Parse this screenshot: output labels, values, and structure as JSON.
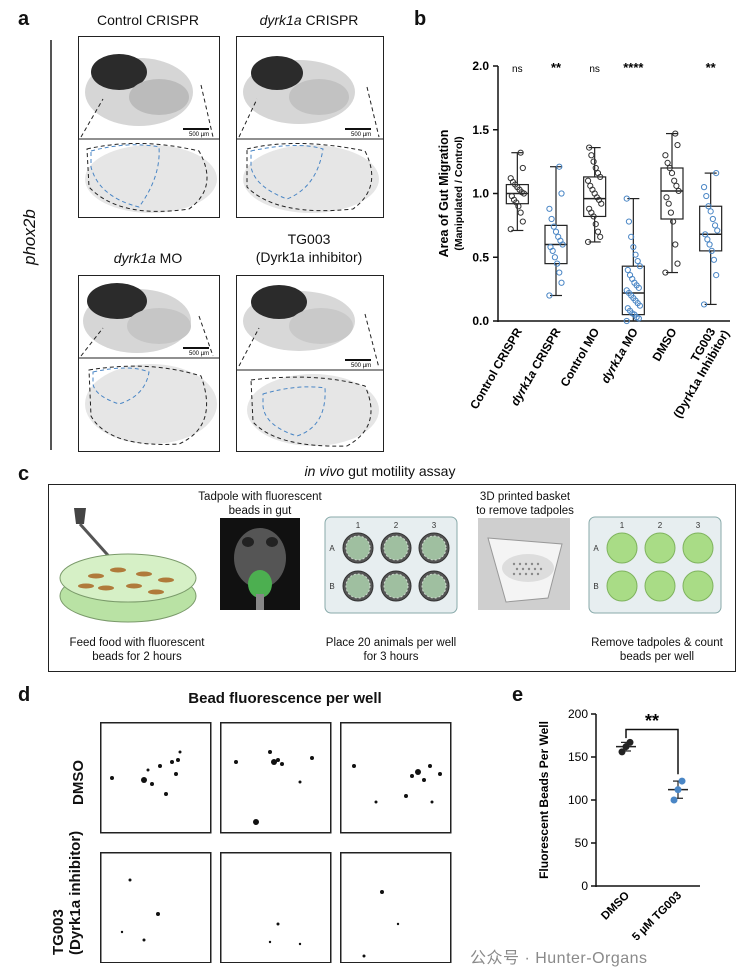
{
  "panel_a": {
    "letter": "a",
    "side_label": "phox2b",
    "titles": {
      "control": "Control CRISPR",
      "dyrk_crispr_gene": "dyrk1a",
      "dyrk_crispr_rest": " CRISPR",
      "mo_gene": "dyrk1a",
      "mo_rest": " MO",
      "tg_line1": "TG003",
      "tg_line2": "(Dyrk1a inhibitor)"
    },
    "scale_bar": "500 µm"
  },
  "panel_b": {
    "letter": "b",
    "significance": [
      "ns",
      "**",
      "ns",
      "****",
      "",
      "**"
    ]
  },
  "panel_c": {
    "letter": "c",
    "title_italic": "in vivo",
    "title_rest": " gut motility assay",
    "tadpole_caption_1": "Tadpole with fluorescent",
    "tadpole_caption_2": "beads in gut",
    "basket_caption_1": "3D printed basket",
    "basket_caption_2": "to remove tadpoles",
    "step1_1": "Feed food with fluorescent",
    "step1_2": "beads for 2 hours",
    "step2_1": "Place 20 animals per well",
    "step2_2": "for 3 hours",
    "step3_1": "Remove tadpoles & count",
    "step3_2": "beads per well",
    "plate_cols": [
      "1",
      "2",
      "3"
    ],
    "plate_rows": [
      "A",
      "B"
    ]
  },
  "panel_d": {
    "letter": "d",
    "title": "Bead fluorescence per well",
    "row1": "DMSO",
    "row2_line1": "TG003",
    "row2_line2": "(Dyrk1a inhibitor)"
  },
  "panel_e": {
    "letter": "e",
    "significance": "**"
  },
  "watermark": "公众号 · Hunter-Organs",
  "chart_data": [
    {
      "type": "box",
      "panel": "b",
      "ylabel": "Area of Gut Migration",
      "ylabel2": "(Manipulated / Control)",
      "ylim": [
        0,
        2.0
      ],
      "yticks": [
        "0.0",
        "0.5",
        "1.0",
        "1.5",
        "2.0"
      ],
      "categories": [
        "Control CRISPR",
        "dyrk1a CRISPR",
        "Control MO",
        "dyrk1a MO",
        "DMSO",
        "TG003 (Dyrk1a Inhibitor)"
      ],
      "cat_label_parts": [
        [
          "",
          "Control CRISPR",
          ""
        ],
        [
          "dyrk1a",
          " CRISPR",
          ""
        ],
        [
          "",
          "Control MO",
          ""
        ],
        [
          "dyrk1a",
          " MO",
          ""
        ],
        [
          "",
          "DMSO",
          ""
        ],
        [
          "",
          "TG003",
          "(Dyrk1a Inhibitor)"
        ]
      ],
      "colors": [
        "#333333",
        "#4a86c5",
        "#333333",
        "#4a86c5",
        "#333333",
        "#4a86c5"
      ],
      "boxes": [
        {
          "min": 0.71,
          "q1": 0.92,
          "median": 1.0,
          "q3": 1.07,
          "max": 1.32
        },
        {
          "min": 0.2,
          "q1": 0.45,
          "median": 0.6,
          "q3": 0.75,
          "max": 1.21
        },
        {
          "min": 0.62,
          "q1": 0.82,
          "median": 0.96,
          "q3": 1.13,
          "max": 1.36
        },
        {
          "min": 0.0,
          "q1": 0.05,
          "median": 0.22,
          "q3": 0.43,
          "max": 0.96
        },
        {
          "min": 0.38,
          "q1": 0.8,
          "median": 1.02,
          "q3": 1.2,
          "max": 1.47
        },
        {
          "min": 0.13,
          "q1": 0.55,
          "median": 0.68,
          "q3": 0.9,
          "max": 1.16
        }
      ],
      "points": [
        [
          0.72,
          0.78,
          0.85,
          0.9,
          0.93,
          0.95,
          0.98,
          1.0,
          1.01,
          1.03,
          1.05,
          1.07,
          1.09,
          1.12,
          1.2,
          1.32
        ],
        [
          0.2,
          0.3,
          0.38,
          0.45,
          0.5,
          0.55,
          0.58,
          0.6,
          0.63,
          0.66,
          0.7,
          0.74,
          0.8,
          0.88,
          1.0,
          1.21
        ],
        [
          0.62,
          0.66,
          0.7,
          0.76,
          0.82,
          0.85,
          0.88,
          0.92,
          0.95,
          0.97,
          1.0,
          1.03,
          1.06,
          1.1,
          1.13,
          1.16,
          1.2,
          1.25,
          1.3,
          1.36
        ],
        [
          0.0,
          0.02,
          0.03,
          0.05,
          0.06,
          0.08,
          0.1,
          0.12,
          0.14,
          0.16,
          0.18,
          0.2,
          0.22,
          0.24,
          0.26,
          0.28,
          0.3,
          0.33,
          0.36,
          0.4,
          0.43,
          0.47,
          0.52,
          0.58,
          0.66,
          0.78,
          0.96
        ],
        [
          0.38,
          0.45,
          0.6,
          0.78,
          0.85,
          0.92,
          0.97,
          1.02,
          1.06,
          1.1,
          1.16,
          1.2,
          1.24,
          1.3,
          1.38,
          1.47
        ],
        [
          0.13,
          0.36,
          0.48,
          0.55,
          0.6,
          0.64,
          0.68,
          0.71,
          0.75,
          0.8,
          0.86,
          0.9,
          0.98,
          1.05,
          1.16
        ]
      ]
    },
    {
      "type": "scatter",
      "panel": "e",
      "ylabel": "Fluorescent Beads Per Well",
      "ylim": [
        0,
        200
      ],
      "yticks": [
        "0",
        "50",
        "100",
        "150",
        "200"
      ],
      "categories": [
        "DMSO",
        "5 µM TG003"
      ],
      "colors": [
        "#222222",
        "#4a86c5"
      ],
      "points": [
        [
          156,
          162,
          167
        ],
        [
          100,
          112,
          122
        ]
      ],
      "means": [
        162,
        112
      ],
      "errors": [
        5,
        10
      ]
    }
  ]
}
